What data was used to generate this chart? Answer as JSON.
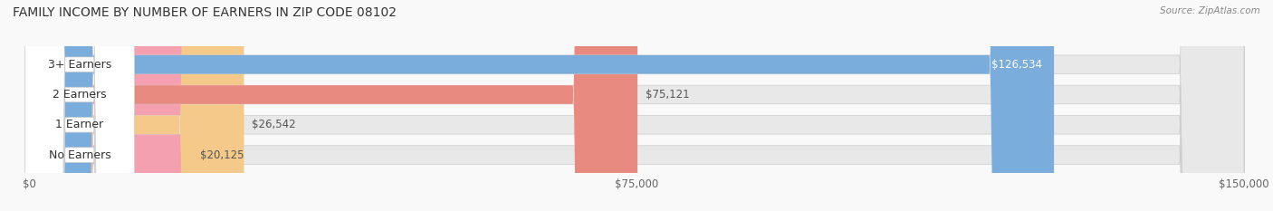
{
  "title": "FAMILY INCOME BY NUMBER OF EARNERS IN ZIP CODE 08102",
  "source": "Source: ZipAtlas.com",
  "categories": [
    "No Earners",
    "1 Earner",
    "2 Earners",
    "3+ Earners"
  ],
  "values": [
    20125,
    26542,
    75121,
    126534
  ],
  "bar_colors": [
    "#f4a0b0",
    "#f5c98a",
    "#e88a80",
    "#7aaddb"
  ],
  "label_colors": [
    "#555555",
    "#555555",
    "#555555",
    "#ffffff"
  ],
  "bar_bg_color": "#eeeeee",
  "bar_border_color": "#cccccc",
  "xlim": [
    0,
    150000
  ],
  "xticks": [
    0,
    75000,
    150000
  ],
  "xtick_labels": [
    "$0",
    "$75,000",
    "$150,000"
  ],
  "figsize": [
    14.06,
    2.33
  ],
  "dpi": 100,
  "bg_color": "#f9f9f9",
  "title_fontsize": 10,
  "label_fontsize": 9,
  "value_fontsize": 8.5,
  "tick_fontsize": 8.5
}
